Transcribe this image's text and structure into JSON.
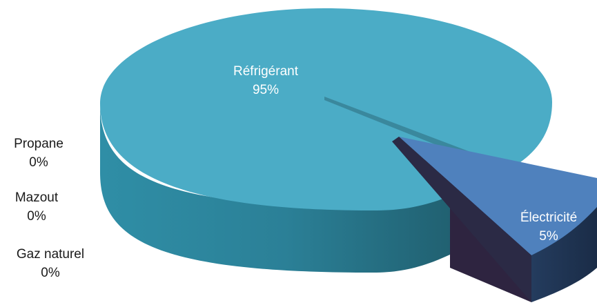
{
  "chart_data": {
    "type": "pie",
    "style": "3d-exploded",
    "slices": [
      {
        "label": "Réfrigérant",
        "value": 95,
        "value_label": "95%",
        "color": "#4bacc6"
      },
      {
        "label": "Électricité",
        "value": 5,
        "value_label": "5%",
        "color": "#4f81bd"
      },
      {
        "label": "Propane",
        "value": 0,
        "value_label": "0%"
      },
      {
        "label": "Mazout",
        "value": 0,
        "value_label": "0%"
      },
      {
        "label": "Gaz naturel",
        "value": 0,
        "value_label": "0%"
      }
    ]
  }
}
